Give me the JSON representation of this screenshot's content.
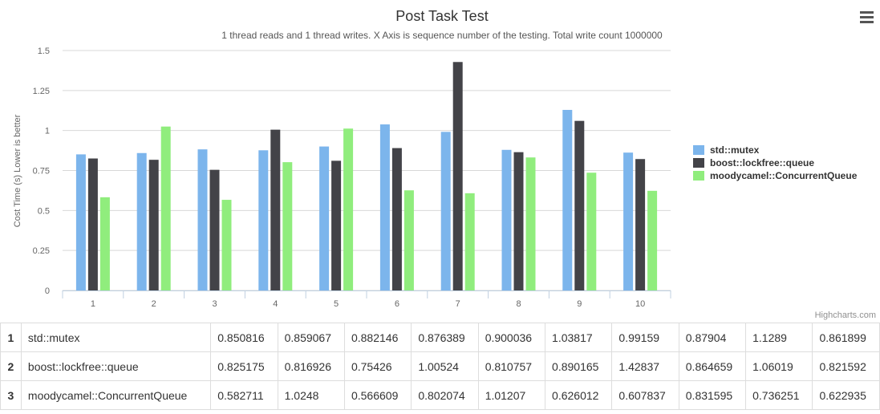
{
  "chart_data": {
    "type": "bar",
    "title": "Post Task Test",
    "subtitle": "1 thread reads and 1 thread writes. X Axis is sequence number of the testing. Total write count 1000000",
    "xlabel": "",
    "ylabel": "Cost Time (s) Lower is better",
    "ylim": [
      0,
      1.5
    ],
    "yticks": [
      "0",
      "0.25",
      "0.5",
      "0.75",
      "1",
      "1.25",
      "1.5"
    ],
    "categories": [
      "1",
      "2",
      "3",
      "4",
      "5",
      "6",
      "7",
      "8",
      "9",
      "10"
    ],
    "grid": true,
    "legend_position": "right",
    "series": [
      {
        "name": "std::mutex",
        "color": "#7cb5ec",
        "values": [
          0.850816,
          0.859067,
          0.882146,
          0.876389,
          0.900036,
          1.03817,
          0.99159,
          0.87904,
          1.1289,
          0.861899
        ]
      },
      {
        "name": "boost::lockfree::queue",
        "color": "#434348",
        "values": [
          0.825175,
          0.816926,
          0.75426,
          1.00524,
          0.810757,
          0.890165,
          1.42837,
          0.864659,
          1.06019,
          0.821592
        ]
      },
      {
        "name": "moodycamel::ConcurrentQueue",
        "color": "#90ed7d",
        "values": [
          0.582711,
          1.0248,
          0.566609,
          0.802074,
          1.01207,
          0.626012,
          0.607837,
          0.831595,
          0.736251,
          0.622935
        ]
      }
    ]
  },
  "credits": "Highcharts.com",
  "menu_icon": "hamburger-menu-icon",
  "table": {
    "rows": [
      {
        "index": "1",
        "name": "std::mutex",
        "values": [
          "0.850816",
          "0.859067",
          "0.882146",
          "0.876389",
          "0.900036",
          "1.03817",
          "0.99159",
          "0.87904",
          "1.1289",
          "0.861899"
        ]
      },
      {
        "index": "2",
        "name": "boost::lockfree::queue",
        "values": [
          "0.825175",
          "0.816926",
          "0.75426",
          "1.00524",
          "0.810757",
          "0.890165",
          "1.42837",
          "0.864659",
          "1.06019",
          "0.821592"
        ]
      },
      {
        "index": "3",
        "name": "moodycamel::ConcurrentQueue",
        "values": [
          "0.582711",
          "1.0248",
          "0.566609",
          "0.802074",
          "1.01207",
          "0.626012",
          "0.607837",
          "0.831595",
          "0.736251",
          "0.622935"
        ]
      }
    ]
  }
}
